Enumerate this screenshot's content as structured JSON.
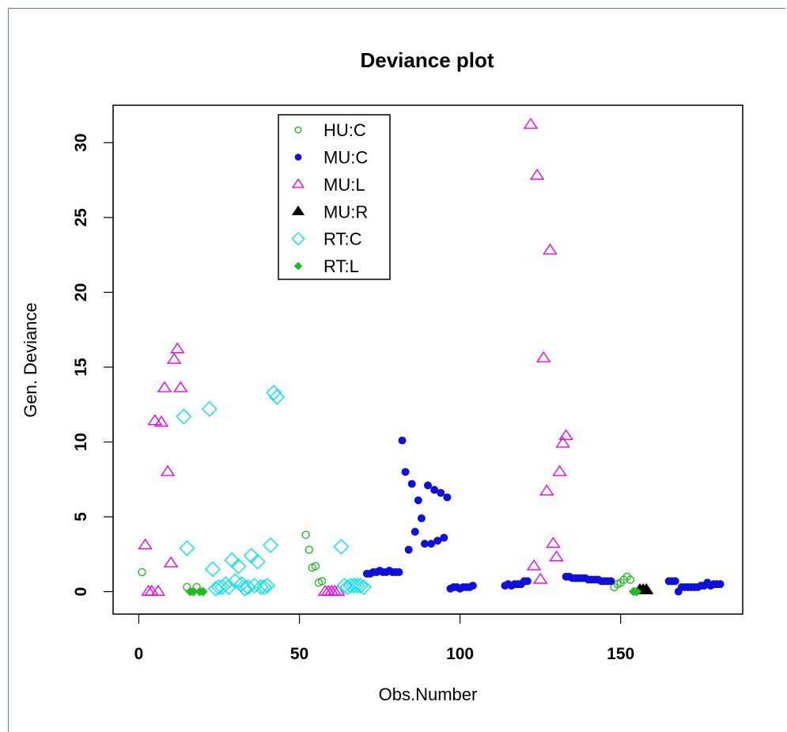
{
  "chart_data": {
    "type": "scatter",
    "title": "Deviance plot",
    "xlabel": "Obs.Number",
    "ylabel": "Gen. Deviance",
    "xlim": [
      -8,
      188
    ],
    "ylim": [
      -1.5,
      32.5
    ],
    "xticks": [
      0,
      50,
      100,
      150
    ],
    "yticks": [
      0,
      5,
      10,
      15,
      20,
      25,
      30
    ],
    "grid": false,
    "legend_position": "top-left",
    "series": [
      {
        "name": "HU:C",
        "marker": "open-circle",
        "color": "#22bb22",
        "points": [
          [
            1,
            1.3
          ],
          [
            15,
            0.3
          ],
          [
            18,
            0.3
          ],
          [
            52,
            3.8
          ],
          [
            53,
            2.8
          ],
          [
            54,
            1.6
          ],
          [
            55,
            1.7
          ],
          [
            56,
            0.6
          ],
          [
            57,
            0.7
          ],
          [
            148,
            0.3
          ],
          [
            149,
            0.5
          ],
          [
            150,
            0.6
          ],
          [
            151,
            0.8
          ],
          [
            152,
            1.0
          ],
          [
            153,
            0.8
          ]
        ]
      },
      {
        "name": "MU:C",
        "marker": "filled-circle",
        "color": "#1010dd",
        "points": [
          [
            71,
            1.2
          ],
          [
            72,
            1.2
          ],
          [
            73,
            1.3
          ],
          [
            74,
            1.3
          ],
          [
            75,
            1.4
          ],
          [
            76,
            1.3
          ],
          [
            77,
            1.3
          ],
          [
            78,
            1.4
          ],
          [
            79,
            1.3
          ],
          [
            80,
            1.3
          ],
          [
            81,
            1.3
          ],
          [
            82,
            10.1
          ],
          [
            83,
            8.0
          ],
          [
            84,
            2.8
          ],
          [
            85,
            7.2
          ],
          [
            86,
            4.0
          ],
          [
            87,
            6.1
          ],
          [
            88,
            4.9
          ],
          [
            89,
            3.2
          ],
          [
            90,
            7.1
          ],
          [
            91,
            3.2
          ],
          [
            92,
            6.8
          ],
          [
            93,
            3.4
          ],
          [
            94,
            6.6
          ],
          [
            95,
            3.6
          ],
          [
            96,
            6.3
          ],
          [
            97,
            0.2
          ],
          [
            98,
            0.3
          ],
          [
            99,
            0.3
          ],
          [
            100,
            0.2
          ],
          [
            101,
            0.3
          ],
          [
            102,
            0.3
          ],
          [
            103,
            0.3
          ],
          [
            104,
            0.4
          ],
          [
            114,
            0.4
          ],
          [
            115,
            0.5
          ],
          [
            116,
            0.4
          ],
          [
            117,
            0.5
          ],
          [
            118,
            0.5
          ],
          [
            119,
            0.5
          ],
          [
            120,
            0.7
          ],
          [
            121,
            0.7
          ],
          [
            133,
            1.0
          ],
          [
            134,
            1.0
          ],
          [
            135,
            0.9
          ],
          [
            136,
            0.9
          ],
          [
            137,
            0.9
          ],
          [
            138,
            0.9
          ],
          [
            139,
            0.9
          ],
          [
            140,
            0.8
          ],
          [
            141,
            0.8
          ],
          [
            142,
            0.8
          ],
          [
            143,
            0.8
          ],
          [
            144,
            0.7
          ],
          [
            145,
            0.7
          ],
          [
            146,
            0.7
          ],
          [
            147,
            0.7
          ],
          [
            165,
            0.7
          ],
          [
            166,
            0.7
          ],
          [
            167,
            0.7
          ],
          [
            168,
            0.0
          ],
          [
            169,
            0.3
          ],
          [
            170,
            0.3
          ],
          [
            171,
            0.3
          ],
          [
            172,
            0.3
          ],
          [
            173,
            0.3
          ],
          [
            174,
            0.3
          ],
          [
            175,
            0.4
          ],
          [
            176,
            0.4
          ],
          [
            177,
            0.6
          ],
          [
            178,
            0.4
          ],
          [
            179,
            0.5
          ],
          [
            180,
            0.5
          ],
          [
            181,
            0.5
          ]
        ]
      },
      {
        "name": "MU:L",
        "marker": "open-triangle",
        "color": "#ee00ee",
        "points": [
          [
            2,
            3.1
          ],
          [
            3,
            0.0
          ],
          [
            4,
            0.0
          ],
          [
            5,
            11.4
          ],
          [
            6,
            0.0
          ],
          [
            7,
            11.3
          ],
          [
            8,
            13.6
          ],
          [
            9,
            8.0
          ],
          [
            10,
            1.9
          ],
          [
            11,
            15.5
          ],
          [
            12,
            16.2
          ],
          [
            13,
            13.6
          ],
          [
            58,
            0.0
          ],
          [
            59,
            0.0
          ],
          [
            60,
            0.0
          ],
          [
            61,
            0.0
          ],
          [
            62,
            0.0
          ],
          [
            122,
            31.2
          ],
          [
            123,
            1.7
          ],
          [
            124,
            27.8
          ],
          [
            125,
            0.8
          ],
          [
            126,
            15.6
          ],
          [
            127,
            6.7
          ],
          [
            128,
            22.8
          ],
          [
            129,
            3.2
          ],
          [
            130,
            2.3
          ],
          [
            131,
            8.0
          ],
          [
            132,
            9.9
          ],
          [
            133,
            10.4
          ]
        ]
      },
      {
        "name": "MU:R",
        "marker": "filled-triangle",
        "color": "#000000",
        "points": [
          [
            156,
            0.1
          ],
          [
            157,
            0.1
          ],
          [
            158,
            0.1
          ]
        ]
      },
      {
        "name": "RT:C",
        "marker": "open-diamond",
        "color": "#00e5ee",
        "points": [
          [
            14,
            11.7
          ],
          [
            15,
            2.9
          ],
          [
            22,
            12.2
          ],
          [
            23,
            1.5
          ],
          [
            24,
            0.2
          ],
          [
            25,
            0.3
          ],
          [
            26,
            0.3
          ],
          [
            27,
            0.5
          ],
          [
            28,
            0.3
          ],
          [
            29,
            2.1
          ],
          [
            30,
            0.7
          ],
          [
            31,
            1.7
          ],
          [
            32,
            0.5
          ],
          [
            33,
            0.2
          ],
          [
            34,
            0.3
          ],
          [
            35,
            2.4
          ],
          [
            36,
            0.4
          ],
          [
            37,
            2.0
          ],
          [
            38,
            0.3
          ],
          [
            39,
            0.3
          ],
          [
            40,
            0.4
          ],
          [
            41,
            3.1
          ],
          [
            42,
            13.3
          ],
          [
            43,
            13.0
          ],
          [
            63,
            3.0
          ],
          [
            64,
            0.4
          ],
          [
            65,
            0.3
          ],
          [
            66,
            0.4
          ],
          [
            67,
            0.4
          ],
          [
            68,
            0.4
          ],
          [
            69,
            0.4
          ],
          [
            70,
            0.3
          ]
        ]
      },
      {
        "name": "RT:L",
        "marker": "filled-diamond",
        "color": "#22bb22",
        "points": [
          [
            16,
            0.0
          ],
          [
            17,
            0.0
          ],
          [
            19,
            0.0
          ],
          [
            20,
            0.0
          ],
          [
            154,
            0.0
          ],
          [
            155,
            0.0
          ]
        ]
      }
    ]
  }
}
